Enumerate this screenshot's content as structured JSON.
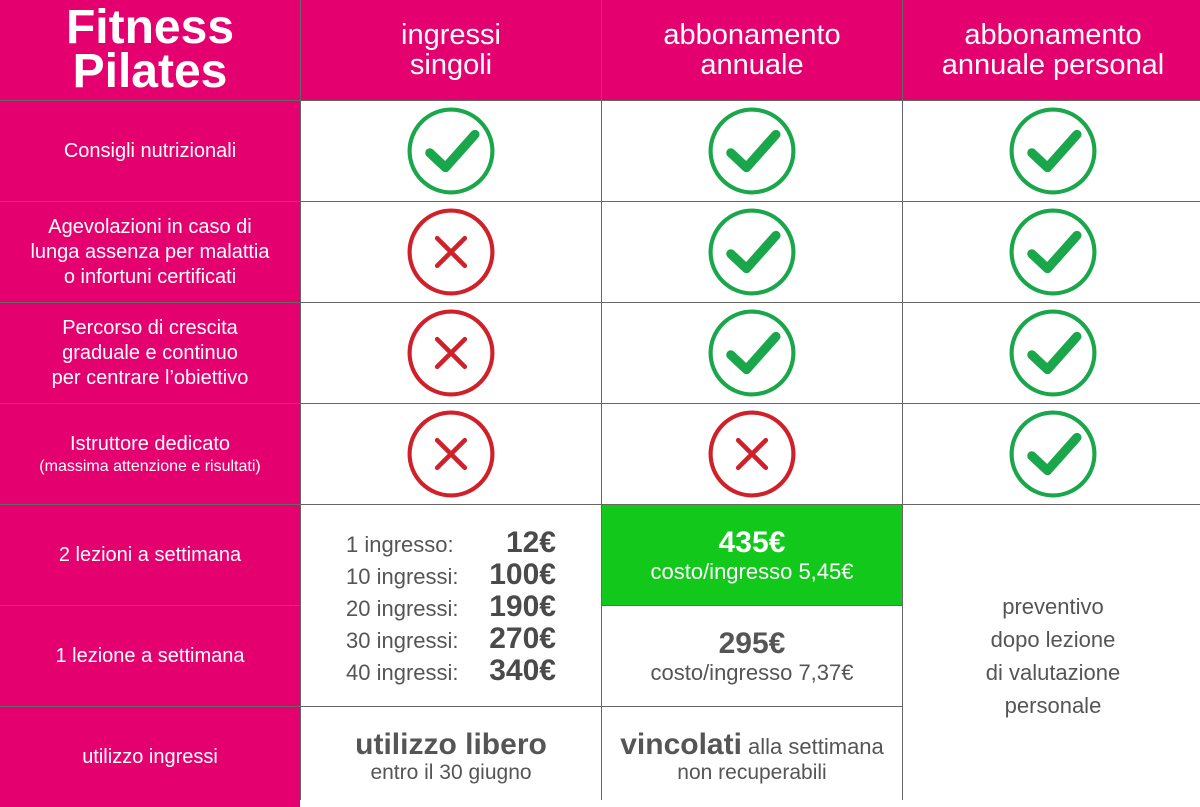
{
  "header": {
    "corner_line1": "Fitness",
    "corner_line2": "Pilates",
    "col1_line1": "ingressi",
    "col1_line2": "singoli",
    "col2_line1": "abbonamento",
    "col2_line2": "annuale",
    "col3_line1": "abbonamento",
    "col3_line2": "annuale personal"
  },
  "rows": [
    {
      "lines": [
        "Consigli nutrizionali"
      ],
      "small": "",
      "values": [
        "check",
        "check",
        "check"
      ]
    },
    {
      "lines": [
        "Agevolazioni in caso di",
        "lunga assenza per malattia",
        "o infortuni certificati"
      ],
      "small": "",
      "values": [
        "cross",
        "check",
        "check"
      ]
    },
    {
      "lines": [
        "Percorso di crescita",
        "graduale e continuo",
        "per centrare l’obiettivo"
      ],
      "small": "",
      "values": [
        "cross",
        "check",
        "check"
      ]
    },
    {
      "lines": [
        "Istruttore dedicato"
      ],
      "small": "(massima attenzione e risultati)",
      "values": [
        "cross",
        "cross",
        "check"
      ]
    }
  ],
  "pricing_rows": {
    "two_per_week": "2 lezioni a settimana",
    "one_per_week": "1 lezione a settimana",
    "usage": "utilizzo ingressi"
  },
  "single_entries": [
    {
      "label": "1 ingresso:",
      "price": "12€"
    },
    {
      "label": "10 ingressi:",
      "price": "100€"
    },
    {
      "label": "20 ingressi:",
      "price": "190€"
    },
    {
      "label": "30 ingressi:",
      "price": "270€"
    },
    {
      "label": "40 ingressi:",
      "price": "340€"
    }
  ],
  "annual": {
    "two_price": "435€",
    "two_sub": "costo/ingresso 5,45€",
    "one_price": "295€",
    "one_sub": "costo/ingresso 7,37€"
  },
  "personal_quote": [
    "preventivo",
    "dopo lezione",
    "di valutazione",
    "personale"
  ],
  "usage": {
    "single_big": "utilizzo libero",
    "single_sub": "entro il 30 giugno",
    "annual_big": "vincolati",
    "annual_inline": " alla settimana",
    "annual_sub": "non recuperabili"
  },
  "colors": {
    "magenta": "#e4006f",
    "check_green": "#1aa64a",
    "cross_red": "#d0202a",
    "highlight_green": "#12c81a"
  },
  "icons": {
    "check": "check-circle-icon",
    "cross": "cross-circle-icon"
  }
}
